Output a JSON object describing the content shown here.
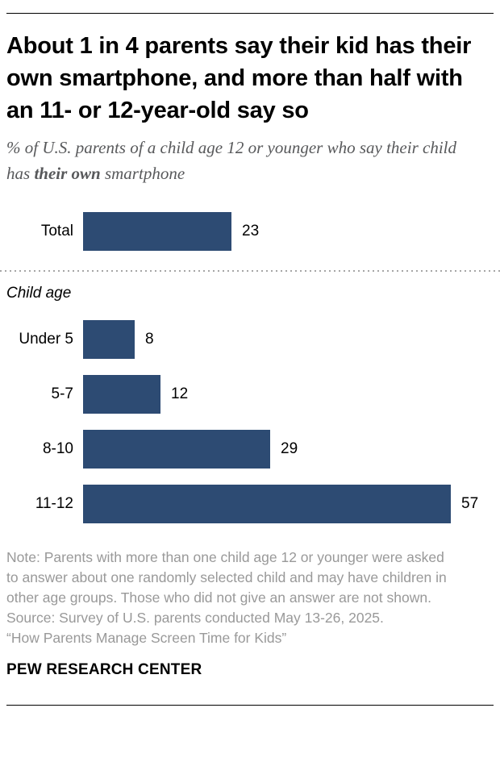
{
  "header": {
    "title": "About 1 in 4 parents say their kid has their own smartphone, and more than half with an 11- or 12-year-old say so",
    "subtitle_prefix": "% of U.S. parents of a child age 12 or younger who say their child has ",
    "subtitle_bold": "their own",
    "subtitle_suffix": " smartphone"
  },
  "chart_data": {
    "type": "bar",
    "orientation": "horizontal",
    "title": "About 1 in 4 parents say their kid has their own smartphone, and more than half with an 11- or 12-year-old say so",
    "subtitle": "% of U.S. parents of a child age 12 or younger who say their child has their own smartphone",
    "group_label": "Child age",
    "categories": [
      "Total",
      "Under 5",
      "5-7",
      "8-10",
      "11-12"
    ],
    "values": [
      23,
      8,
      12,
      29,
      57
    ],
    "rows": [
      {
        "label": "Total",
        "value": 23,
        "group": "total"
      },
      {
        "label": "Under 5",
        "value": 8,
        "group": "child-age"
      },
      {
        "label": "5-7",
        "value": 12,
        "group": "child-age"
      },
      {
        "label": "8-10",
        "value": 29,
        "group": "child-age"
      },
      {
        "label": "11-12",
        "value": 57,
        "group": "child-age"
      }
    ],
    "value_range": [
      0,
      60
    ],
    "axis_shown": false,
    "data_labels": true,
    "legend": "none",
    "bar_color": "#2d4b73"
  },
  "notes": {
    "note_text": "Note: Parents with more than one child age 12 or younger were asked to answer about one randomly selected child and may have children in other age groups. Those who did not give an answer are not shown.",
    "source_text": "Source: Survey of U.S. parents conducted May 13-26, 2025.",
    "report_title": "“How Parents Manage Screen Time for Kids”"
  },
  "footer": {
    "brand": "PEW RESEARCH CENTER"
  },
  "colors": {
    "bar": "#2d4b73",
    "title_text": "#000000",
    "subtitle_text": "#58595b",
    "note_text": "#999999",
    "rule": "#000000",
    "dotted_separator": "#a6a6a6"
  }
}
